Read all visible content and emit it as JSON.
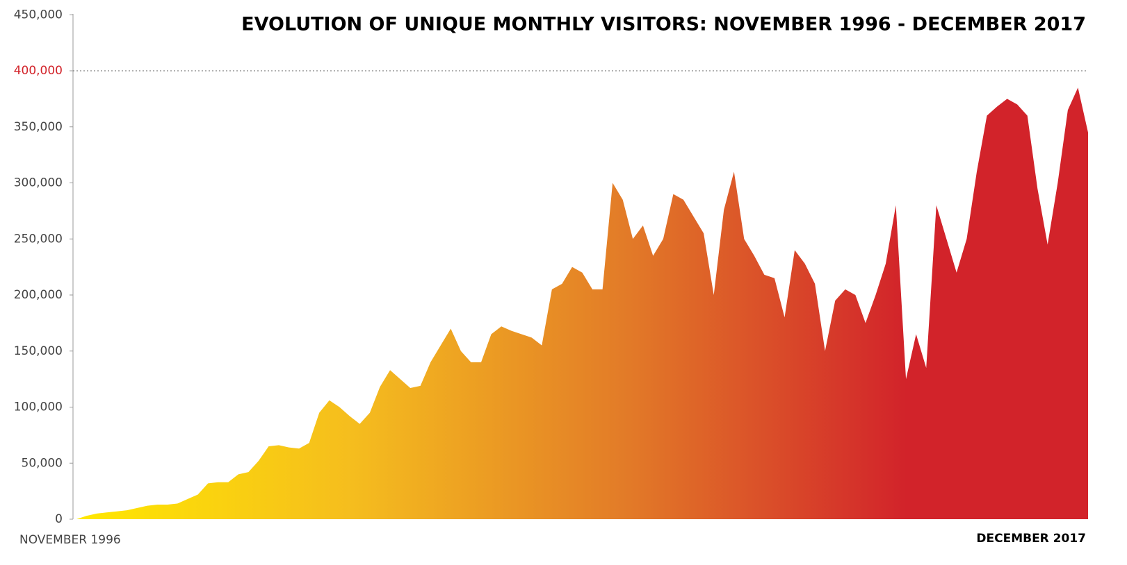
{
  "chart_data": {
    "type": "area",
    "title": "EVOLUTION OF UNIQUE MONTHLY VISITORS: NOVEMBER 1996 - DECEMBER 2017",
    "categories": [
      "NOVEMBER 1996",
      null,
      null,
      null,
      null,
      null,
      null,
      null,
      null,
      null,
      null,
      null,
      null,
      null,
      null,
      null,
      null,
      null,
      null,
      null,
      null,
      null,
      null,
      null,
      null,
      null,
      null,
      null,
      null,
      null,
      null,
      null,
      null,
      null,
      null,
      null,
      null,
      null,
      null,
      null,
      null,
      null,
      null,
      null,
      null,
      null,
      null,
      null,
      null,
      null,
      null,
      null,
      null,
      null,
      null,
      null,
      null,
      null,
      null,
      null,
      null,
      null,
      null,
      null,
      null,
      null,
      null,
      null,
      null,
      null,
      null,
      null,
      null,
      null,
      null,
      null,
      null,
      null,
      null,
      null,
      null,
      null,
      null,
      null,
      null,
      null,
      null,
      null,
      null,
      null,
      null,
      null,
      null,
      null,
      null,
      null,
      null,
      null,
      null,
      null,
      "DECEMBER 2017"
    ],
    "values": [
      0,
      3000,
      5000,
      6000,
      7000,
      8000,
      10000,
      12000,
      13000,
      13000,
      14000,
      18000,
      22000,
      32000,
      33000,
      33000,
      40000,
      42000,
      52000,
      65000,
      66000,
      64000,
      63000,
      68000,
      95000,
      106000,
      100000,
      92000,
      85000,
      95000,
      118000,
      133000,
      125000,
      117000,
      119000,
      140000,
      155000,
      170000,
      150000,
      140000,
      140000,
      165000,
      172000,
      168000,
      165000,
      162000,
      155000,
      205000,
      210000,
      225000,
      220000,
      205000,
      205000,
      300000,
      285000,
      250000,
      262000,
      235000,
      250000,
      290000,
      285000,
      270000,
      255000,
      200000,
      276000,
      310000,
      250000,
      235000,
      218000,
      215000,
      180000,
      240000,
      228000,
      210000,
      150000,
      195000,
      205000,
      200000,
      175000,
      200000,
      228000,
      280000,
      125000,
      165000,
      135000,
      280000,
      250000,
      220000,
      250000,
      310000,
      360000,
      368000,
      375000,
      370000,
      360000,
      295000,
      245000,
      300000,
      365000,
      385000,
      345000
    ],
    "gradient": [
      "#ffe800",
      "#f5bd1e",
      "#e27a28",
      "#d2232a"
    ],
    "ylim": [
      0,
      450000
    ],
    "yticks": [
      0,
      {
        "value": 50000,
        "label": "50,000"
      },
      {
        "value": 100000,
        "label": "100,000"
      },
      {
        "value": 150000,
        "label": "150,000"
      },
      {
        "value": 200000,
        "label": "200,000"
      },
      {
        "value": 250000,
        "label": "250,000"
      },
      {
        "value": 300000,
        "label": "300,000"
      },
      {
        "value": 350000,
        "label": "350,000"
      },
      {
        "value": 400000,
        "label": "400,000"
      },
      {
        "value": 450000,
        "label": "450,000"
      }
    ],
    "reference_line": {
      "value": 400000,
      "color": "#d2232a"
    }
  }
}
